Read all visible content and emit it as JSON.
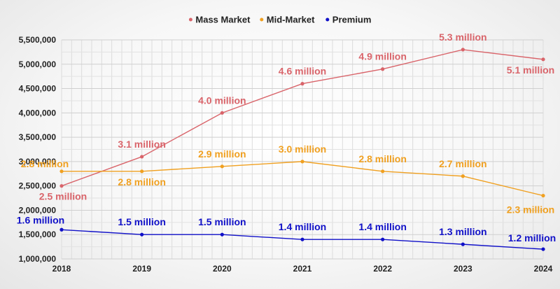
{
  "chart_data": {
    "type": "line",
    "categories": [
      "2018",
      "2019",
      "2020",
      "2021",
      "2022",
      "2023",
      "2024"
    ],
    "series": [
      {
        "name": "Mass Market",
        "color": "#d9646a",
        "values": [
          2500000,
          3100000,
          4000000,
          4600000,
          4900000,
          5300000,
          5100000
        ],
        "labels": [
          "2.5 million",
          "3.1 million",
          "4.0 million",
          "4.6 million",
          "4.9 million",
          "5.3 million",
          "5.1 million"
        ]
      },
      {
        "name": "Mid-Market",
        "color": "#f0a020",
        "values": [
          2800000,
          2800000,
          2900000,
          3000000,
          2800000,
          2700000,
          2300000
        ],
        "labels": [
          "2.8 million",
          "2.8 million",
          "2.9 million",
          "3.0 million",
          "2.8 million",
          "2.7 million",
          "2.3 million"
        ]
      },
      {
        "name": "Premium",
        "color": "#1010c8",
        "values": [
          1600000,
          1500000,
          1500000,
          1400000,
          1400000,
          1300000,
          1200000
        ],
        "labels": [
          "1.6 million",
          "1.5 million",
          "1.5 million",
          "1.4 million",
          "1.4 million",
          "1.3 million",
          "1.2 million"
        ]
      }
    ],
    "yticks": [
      "1,000,000",
      "1,500,000",
      "2,000,000",
      "2,500,000",
      "3,000,000",
      "3,500,000",
      "4,000,000",
      "4,500,000",
      "5,000,000",
      "5,500,000"
    ],
    "ylim": [
      1000000,
      5500000
    ],
    "grid": true,
    "legend_position": "top-center"
  }
}
